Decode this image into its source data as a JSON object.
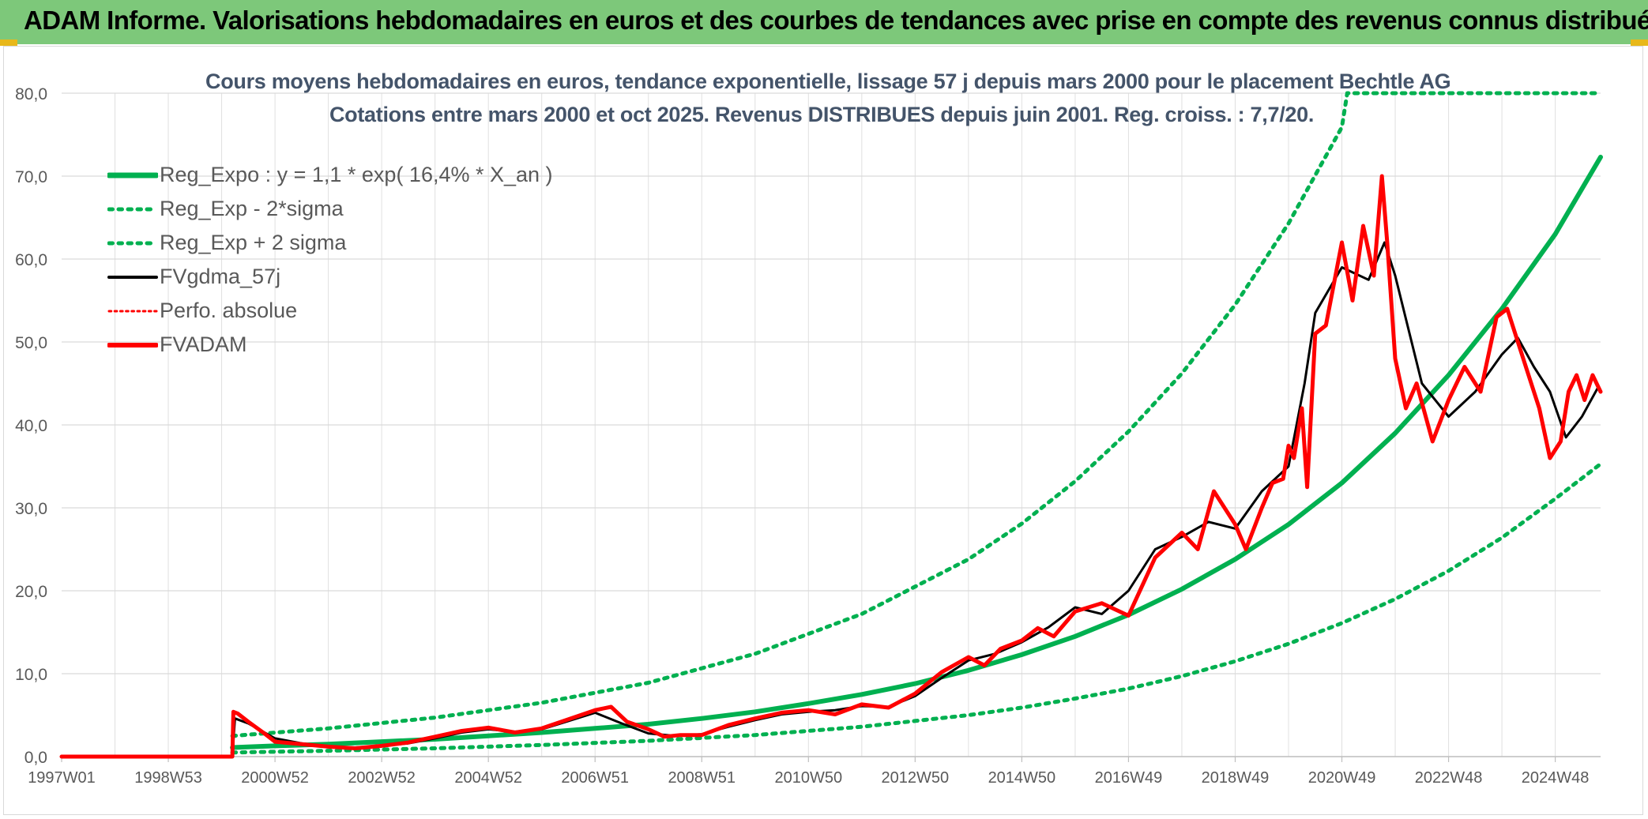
{
  "header": {
    "title": "ADAM Informe. Valorisations hebdomadaires en euros et des courbes de tendances avec prise en compte des revenus connus distribués"
  },
  "colors": {
    "header_bg": "#7dc87a",
    "green": "#00b050",
    "black": "#000000",
    "red": "#ff0000",
    "grid": "#d9d9d9",
    "axis_text": "#595959",
    "title_text": "#44546a"
  },
  "chart_data": {
    "type": "line",
    "title": "Cours moyens hebdomadaires en euros, tendance exponentielle, lissage 57 j depuis mars 2000 pour le placement Bechtle AG",
    "subtitle": "Cotations entre mars 2000 et oct 2025. Revenus DISTRIBUES depuis juin 2001. Reg. croiss. : 7,7/20.",
    "xlabel": "",
    "ylabel": "",
    "ylim": [
      0,
      80
    ],
    "xlim": [
      1997.0,
      2025.85
    ],
    "yticks": [
      "0,0",
      "10,0",
      "20,0",
      "30,0",
      "40,0",
      "50,0",
      "60,0",
      "70,0",
      "80,0"
    ],
    "xticks": [
      {
        "x": 1997.0,
        "label": "1997W01"
      },
      {
        "x": 1999.0,
        "label": "1998W53"
      },
      {
        "x": 2001.0,
        "label": "2000W52"
      },
      {
        "x": 2003.0,
        "label": "2002W52"
      },
      {
        "x": 2005.0,
        "label": "2004W52"
      },
      {
        "x": 2007.0,
        "label": "2006W51"
      },
      {
        "x": 2009.0,
        "label": "2008W51"
      },
      {
        "x": 2011.0,
        "label": "2010W50"
      },
      {
        "x": 2013.0,
        "label": "2012W50"
      },
      {
        "x": 2015.0,
        "label": "2014W50"
      },
      {
        "x": 2017.0,
        "label": "2016W49"
      },
      {
        "x": 2019.0,
        "label": "2018W49"
      },
      {
        "x": 2021.0,
        "label": "2020W49"
      },
      {
        "x": 2023.0,
        "label": "2022W48"
      },
      {
        "x": 2025.0,
        "label": "2024W48"
      }
    ],
    "legend": {
      "position": "top-left",
      "entries": [
        {
          "name": "Reg_Expo : y = 1,1 * exp( 16,4% *  X_an )",
          "color": "#00b050",
          "style": "solid",
          "width": 7
        },
        {
          "name": "Reg_Exp - 2*sigma",
          "color": "#00b050",
          "style": "dotted",
          "width": 5
        },
        {
          "name": "Reg_Exp + 2 sigma",
          "color": "#00b050",
          "style": "dotted",
          "width": 5
        },
        {
          "name": "FVgdma_57j",
          "color": "#000000",
          "style": "solid",
          "width": 4
        },
        {
          "name": "Perfo. absolue",
          "color": "#ff0000",
          "style": "dotted",
          "width": 3
        },
        {
          "name": "FVADAM",
          "color": "#ff0000",
          "style": "solid",
          "width": 6
        }
      ]
    },
    "series": [
      {
        "name": "Reg_Expo",
        "color": "#00b050",
        "style": "solid",
        "width": 6,
        "x": [
          2000.2,
          2001,
          2002,
          2003,
          2004,
          2005,
          2006,
          2007,
          2008,
          2009,
          2010,
          2011,
          2012,
          2013,
          2014,
          2015,
          2016,
          2017,
          2018,
          2019,
          2020,
          2021,
          2022,
          2023,
          2024,
          2025,
          2025.85
        ],
        "values": [
          1.1,
          1.3,
          1.5,
          1.8,
          2.1,
          2.5,
          2.9,
          3.4,
          3.9,
          4.6,
          5.4,
          6.4,
          7.5,
          8.8,
          10.4,
          12.3,
          14.5,
          17.1,
          20.2,
          23.8,
          28.0,
          33.0,
          39.0,
          46.0,
          54.0,
          63.0,
          72.3
        ]
      },
      {
        "name": "Reg_Exp - 2*sigma",
        "color": "#00b050",
        "style": "dotted",
        "width": 5,
        "x": [
          2000.2,
          2002,
          2004,
          2006,
          2008,
          2010,
          2012,
          2014,
          2015,
          2016,
          2017,
          2018,
          2019,
          2020,
          2021,
          2022,
          2023,
          2024,
          2025,
          2025.85
        ],
        "values": [
          0.5,
          0.7,
          1.0,
          1.4,
          1.9,
          2.6,
          3.6,
          5.0,
          5.9,
          7.0,
          8.2,
          9.7,
          11.5,
          13.6,
          16.1,
          19.0,
          22.4,
          26.4,
          31.1,
          35.3
        ]
      },
      {
        "name": "Reg_Exp + 2 sigma",
        "color": "#00b050",
        "style": "dotted",
        "width": 5,
        "x": [
          2000.2,
          2002,
          2004,
          2006,
          2008,
          2010,
          2012,
          2014,
          2015,
          2016,
          2017,
          2018,
          2019,
          2020,
          2021,
          2021.1,
          2022,
          2023,
          2024,
          2025,
          2025.85
        ],
        "values": [
          2.5,
          3.4,
          4.7,
          6.5,
          8.9,
          12.4,
          17.2,
          23.8,
          28.1,
          33.2,
          39.2,
          46.2,
          54.5,
          64.3,
          75.9,
          80.0,
          80.0,
          80.0,
          80.0,
          80.0,
          80.0
        ]
      },
      {
        "name": "FVgdma_57j",
        "color": "#000000",
        "style": "solid",
        "width": 3,
        "x": [
          1997.0,
          2000.2,
          2000.25,
          2000.5,
          2001,
          2001.5,
          2002,
          2002.5,
          2003,
          2003.5,
          2004,
          2004.5,
          2005,
          2005.5,
          2006,
          2006.5,
          2007,
          2007.5,
          2008,
          2008.5,
          2009,
          2009.5,
          2010,
          2010.5,
          2011,
          2011.5,
          2012,
          2012.5,
          2013,
          2013.5,
          2014,
          2014.5,
          2015,
          2015.5,
          2016,
          2016.5,
          2017,
          2017.5,
          2018,
          2018.5,
          2019,
          2019.5,
          2020,
          2020.3,
          2020.5,
          2021,
          2021.5,
          2021.8,
          2022,
          2022.5,
          2023,
          2023.5,
          2024,
          2024.3,
          2024.6,
          2024.9,
          2025.2,
          2025.5,
          2025.8
        ],
        "values": [
          0,
          0,
          4.6,
          4.0,
          2.2,
          1.6,
          1.2,
          1.1,
          1.3,
          1.6,
          2.2,
          2.9,
          3.3,
          3.0,
          3.3,
          4.3,
          5.3,
          4.0,
          2.8,
          2.5,
          2.7,
          3.6,
          4.4,
          5.1,
          5.4,
          5.6,
          6.1,
          6.0,
          7.3,
          9.5,
          11.6,
          12.4,
          13.8,
          15.6,
          18.0,
          17.2,
          20.0,
          25.0,
          26.5,
          28.3,
          27.5,
          32.0,
          35.0,
          45.0,
          53.5,
          59.0,
          57.5,
          62.0,
          58.0,
          45.0,
          41.0,
          44.0,
          48.5,
          50.5,
          47.0,
          44.0,
          38.5,
          41.0,
          44.5
        ]
      },
      {
        "name": "FVADAM",
        "color": "#ff0000",
        "style": "solid",
        "width": 5,
        "x": [
          1997.0,
          2000.2,
          2000.22,
          2000.3,
          2000.5,
          2000.8,
          2001,
          2001.5,
          2002,
          2002.5,
          2003,
          2003.5,
          2004,
          2004.5,
          2005,
          2005.5,
          2006,
          2006.5,
          2007,
          2007.3,
          2007.6,
          2008,
          2008.3,
          2008.6,
          2009,
          2009.5,
          2010,
          2010.5,
          2011,
          2011.5,
          2012,
          2012.5,
          2013,
          2013.5,
          2014,
          2014.3,
          2014.6,
          2015,
          2015.3,
          2015.6,
          2016,
          2016.5,
          2017,
          2017.5,
          2018,
          2018.3,
          2018.6,
          2019,
          2019.2,
          2019.5,
          2019.7,
          2019.9,
          2020.0,
          2020.1,
          2020.25,
          2020.35,
          2020.5,
          2020.7,
          2021.0,
          2021.2,
          2021.4,
          2021.6,
          2021.75,
          2021.85,
          2022.0,
          2022.2,
          2022.4,
          2022.7,
          2023.0,
          2023.3,
          2023.6,
          2023.9,
          2024.1,
          2024.3,
          2024.5,
          2024.7,
          2024.9,
          2025.1,
          2025.25,
          2025.4,
          2025.55,
          2025.7,
          2025.85
        ],
        "values": [
          0,
          0,
          5.4,
          5.2,
          4.2,
          2.8,
          1.8,
          1.5,
          1.2,
          1.0,
          1.3,
          1.7,
          2.4,
          3.1,
          3.5,
          2.9,
          3.4,
          4.5,
          5.6,
          6.0,
          4.2,
          3.3,
          2.4,
          2.6,
          2.6,
          3.8,
          4.6,
          5.3,
          5.6,
          5.1,
          6.3,
          5.9,
          7.6,
          10.2,
          12.0,
          11.0,
          13.0,
          14.0,
          15.5,
          14.5,
          17.5,
          18.5,
          17.0,
          24.0,
          27.0,
          25.0,
          32.0,
          28.0,
          25.0,
          30.0,
          33.0,
          33.5,
          37.5,
          36.0,
          42.0,
          32.5,
          51.0,
          52.0,
          62.0,
          55.0,
          64.0,
          58.0,
          70.0,
          62.0,
          48.0,
          42.0,
          45.0,
          38.0,
          43.0,
          47.0,
          44.0,
          53.0,
          54.0,
          50.0,
          46.0,
          42.0,
          36.0,
          38.0,
          44.0,
          46.0,
          43.0,
          46.0,
          44.0
        ]
      }
    ]
  }
}
